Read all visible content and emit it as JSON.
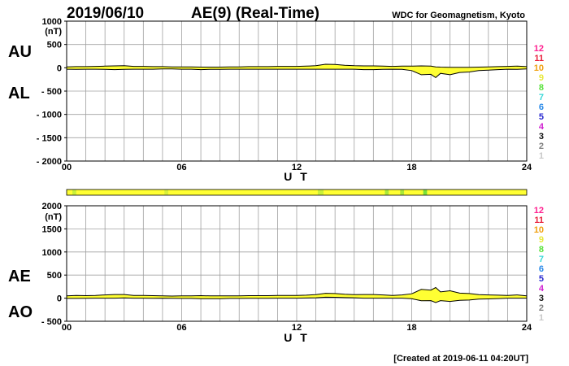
{
  "header": {
    "date": "2019/06/10",
    "index_title": "AE(9)  (Real-Time)",
    "source": "WDC for Geomagnetism, Kyoto"
  },
  "footer": {
    "created": "[Created at 2019-06-11 04:20UT]"
  },
  "station_legend": [
    {
      "label": "12",
      "color": "#ff1f8f"
    },
    {
      "label": "11",
      "color": "#e8203c"
    },
    {
      "label": "10",
      "color": "#f0a010"
    },
    {
      "label": "9",
      "color": "#e8e83a"
    },
    {
      "label": "8",
      "color": "#58e03a"
    },
    {
      "label": "7",
      "color": "#3ad8d8"
    },
    {
      "label": "6",
      "color": "#2a8ae8"
    },
    {
      "label": "5",
      "color": "#2a2ad0"
    },
    {
      "label": "4",
      "color": "#d020d0"
    },
    {
      "label": "3",
      "color": "#101010"
    },
    {
      "label": "2",
      "color": "#808080"
    },
    {
      "label": "1",
      "color": "#c8c8c8"
    }
  ],
  "chart_data": [
    {
      "type": "area",
      "panel": "AU/AL",
      "ylabel_upper": "AU",
      "ylabel_lower": "AL",
      "unit": "(nT)",
      "xlabel": "U T",
      "xlim": [
        0,
        24
      ],
      "ylim": [
        -2000,
        1000
      ],
      "x_ticks": [
        "00",
        "06",
        "12",
        "18",
        "24"
      ],
      "y_ticks": [
        "1000",
        "500",
        "0",
        "- 500",
        "- 1000",
        "- 1500",
        "- 2000"
      ],
      "grid": true,
      "fill_color": "#ffff33",
      "x": [
        0,
        0.5,
        1,
        1.5,
        2,
        2.5,
        3,
        3.5,
        4,
        4.5,
        5,
        5.5,
        6,
        6.5,
        7,
        7.5,
        8,
        8.5,
        9,
        9.5,
        10,
        10.5,
        11,
        11.5,
        12,
        12.5,
        13,
        13.5,
        14,
        14.5,
        15,
        15.5,
        16,
        16.5,
        17,
        17.5,
        18,
        18.5,
        19,
        19.25,
        19.5,
        20,
        20.5,
        21,
        21.5,
        22,
        22.5,
        23,
        23.5,
        24
      ],
      "series": [
        {
          "name": "AU",
          "values": [
            20,
            25,
            25,
            30,
            35,
            40,
            45,
            30,
            30,
            25,
            25,
            20,
            20,
            20,
            15,
            15,
            15,
            20,
            20,
            25,
            25,
            25,
            30,
            30,
            30,
            35,
            45,
            75,
            70,
            55,
            45,
            40,
            40,
            35,
            30,
            35,
            35,
            40,
            35,
            20,
            15,
            10,
            10,
            10,
            15,
            20,
            25,
            30,
            35,
            25
          ]
        },
        {
          "name": "AL",
          "values": [
            -30,
            -35,
            -30,
            -30,
            -35,
            -40,
            -35,
            -30,
            -30,
            -30,
            -25,
            -25,
            -30,
            -30,
            -40,
            -35,
            -35,
            -30,
            -30,
            -30,
            -30,
            -30,
            -30,
            -30,
            -30,
            -30,
            -30,
            -30,
            -30,
            -30,
            -30,
            -40,
            -40,
            -35,
            -30,
            -35,
            -60,
            -150,
            -140,
            -210,
            -120,
            -150,
            -100,
            -90,
            -60,
            -50,
            -40,
            -30,
            -35,
            -25
          ]
        }
      ]
    },
    {
      "type": "area",
      "panel": "AE/AO",
      "ylabel_upper": "AE",
      "ylabel_lower": "AO",
      "unit": "(nT)",
      "xlabel": "U T",
      "xlim": [
        0,
        24
      ],
      "ylim": [
        -500,
        2000
      ],
      "x_ticks": [
        "00",
        "06",
        "12",
        "18",
        "24"
      ],
      "y_ticks": [
        "2000",
        "1500",
        "1000",
        "500",
        "0",
        "- 500"
      ],
      "grid": true,
      "fill_color": "#ffff33",
      "x": [
        0,
        0.5,
        1,
        1.5,
        2,
        2.5,
        3,
        3.5,
        4,
        4.5,
        5,
        5.5,
        6,
        6.5,
        7,
        7.5,
        8,
        8.5,
        9,
        9.5,
        10,
        10.5,
        11,
        11.5,
        12,
        12.5,
        13,
        13.5,
        14,
        14.5,
        15,
        15.5,
        16,
        16.5,
        17,
        17.5,
        18,
        18.5,
        19,
        19.25,
        19.5,
        20,
        20.5,
        21,
        21.5,
        22,
        22.5,
        23,
        23.5,
        24
      ],
      "series": [
        {
          "name": "AE",
          "values": [
            50,
            60,
            55,
            60,
            70,
            80,
            80,
            60,
            60,
            55,
            50,
            45,
            50,
            50,
            55,
            50,
            50,
            50,
            50,
            55,
            55,
            55,
            60,
            60,
            60,
            65,
            75,
            105,
            100,
            85,
            75,
            80,
            80,
            70,
            60,
            70,
            95,
            190,
            175,
            230,
            135,
            160,
            110,
            100,
            75,
            70,
            65,
            60,
            70,
            50
          ]
        },
        {
          "name": "AO",
          "values": [
            -5,
            -5,
            -3,
            0,
            0,
            0,
            5,
            0,
            0,
            -3,
            0,
            -3,
            -5,
            -5,
            -12,
            -10,
            -10,
            -5,
            -5,
            -3,
            -3,
            -3,
            0,
            0,
            0,
            3,
            8,
            22,
            20,
            12,
            8,
            0,
            0,
            0,
            0,
            0,
            -12,
            -55,
            -52,
            -95,
            -52,
            -70,
            -45,
            -40,
            -22,
            -15,
            -8,
            0,
            0,
            0
          ]
        }
      ]
    }
  ],
  "coverage_bar": {
    "base_color": "#ffff33",
    "highlights": [
      {
        "start": 0.3,
        "end": 0.5,
        "color": "#c8f03a"
      },
      {
        "start": 5.1,
        "end": 5.3,
        "color": "#d8f03a"
      },
      {
        "start": 13.1,
        "end": 13.4,
        "color": "#c8f03a"
      },
      {
        "start": 16.6,
        "end": 16.8,
        "color": "#a8e83a"
      },
      {
        "start": 17.4,
        "end": 17.6,
        "color": "#a8e83a"
      },
      {
        "start": 18.6,
        "end": 18.8,
        "color": "#78e03a"
      }
    ]
  }
}
